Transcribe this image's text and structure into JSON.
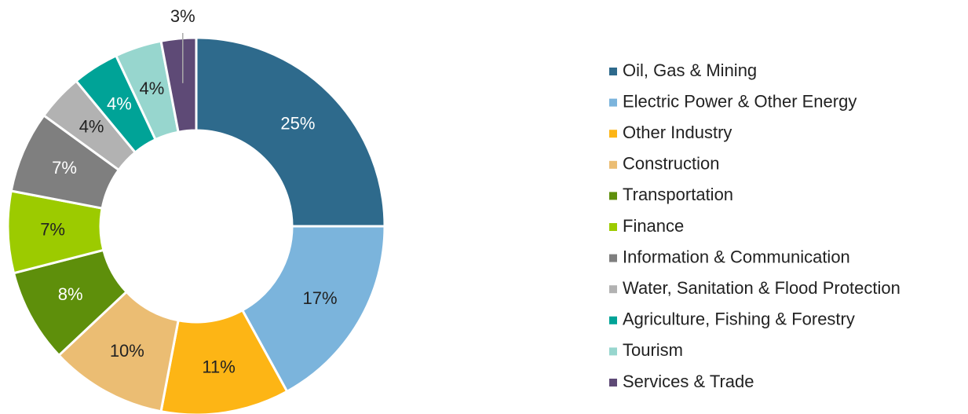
{
  "chart_data": {
    "type": "donut",
    "categories": [
      "Oil, Gas & Mining",
      "Electric Power & Other Energy",
      "Other Industry",
      "Construction",
      "Transportation",
      "Finance",
      "Information & Communication",
      "Water, Sanitation & Flood Protection",
      "Agriculture, Fishing & Forestry",
      "Tourism",
      "Services & Trade"
    ],
    "values": [
      25,
      17,
      11,
      10,
      8,
      7,
      7,
      4,
      4,
      4,
      3
    ],
    "value_labels": [
      "25%",
      "17%",
      "11%",
      "10%",
      "8%",
      "7%",
      "7%",
      "4%",
      "4%",
      "4%",
      "3%"
    ],
    "colors": [
      "#2e6a8c",
      "#7bb4dc",
      "#fdb515",
      "#ebbd73",
      "#5e8f0b",
      "#9ccb00",
      "#7f7f7f",
      "#b2b2b2",
      "#00a397",
      "#97d6ce",
      "#5e4a76"
    ],
    "legend": "right"
  }
}
